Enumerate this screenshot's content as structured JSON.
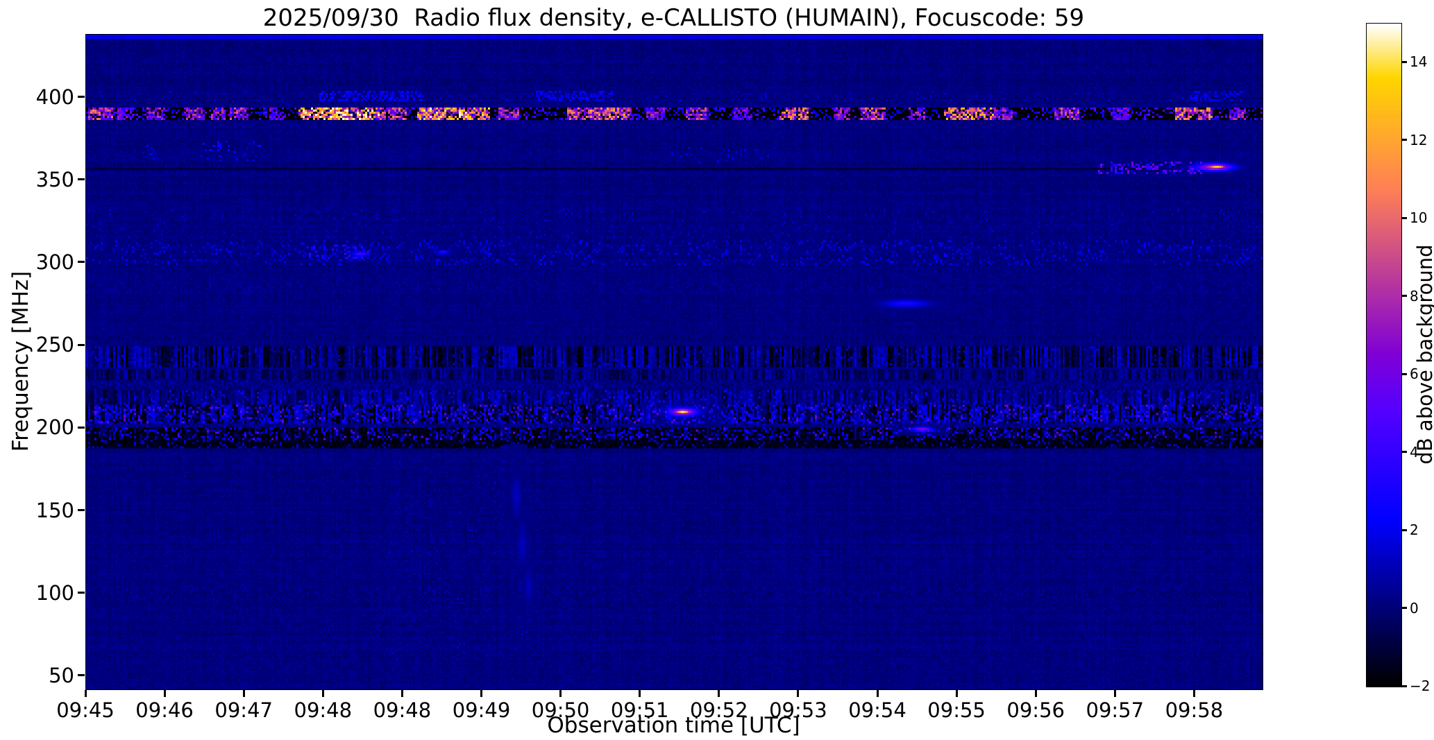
{
  "chart_data": {
    "type": "heatmap",
    "title": "2025/09/30  Radio flux density, e-CALLISTO (HUMAIN), Focuscode: 59",
    "xlabel": "Observation time [UTC]",
    "ylabel": "Frequency [MHz]",
    "x_ticks": [
      "09:45",
      "09:46",
      "09:47",
      "09:48",
      "09:48",
      "09:49",
      "09:50",
      "09:51",
      "09:52",
      "09:53",
      "09:54",
      "09:55",
      "09:56",
      "09:57",
      "09:58"
    ],
    "y_ticks": [
      400,
      350,
      300,
      250,
      200,
      150,
      100,
      50
    ],
    "freq_range": [
      42,
      438
    ],
    "time_span": 14.87,
    "value_range": [
      -2,
      15
    ],
    "background_level_db": 0.15,
    "grid": false,
    "colorbar": {
      "label": "dB above background",
      "ticks": [
        14,
        12,
        10,
        8,
        6,
        4,
        2,
        0,
        -2
      ],
      "tick_labels": [
        "14",
        "12",
        "10",
        "8",
        "6",
        "4",
        "2",
        "0",
        "−2"
      ],
      "colormap": "gnuplot2"
    },
    "features": [
      {
        "kind": "hline",
        "f": 437,
        "h": 2.5,
        "v": 2.0
      },
      {
        "kind": "speckles",
        "f0": 398,
        "f1": 403,
        "t0": 0,
        "t1": 14.87,
        "density": 0.04,
        "v0": 0.7,
        "v1": 1.6
      },
      {
        "kind": "speckles",
        "f0": 398,
        "f1": 404,
        "t0": 2.95,
        "t1": 4.25,
        "density": 0.5,
        "v0": 1.4,
        "v1": 3.0
      },
      {
        "kind": "speckles",
        "f0": 398,
        "f1": 404,
        "t0": 5.7,
        "t1": 6.65,
        "density": 0.45,
        "v0": 1.3,
        "v1": 2.8
      },
      {
        "kind": "speckles",
        "f0": 399,
        "f1": 403,
        "t0": 13.95,
        "t1": 14.6,
        "density": 0.4,
        "v0": 1.4,
        "v1": 2.6
      },
      {
        "kind": "band",
        "f0": 386.5,
        "f1": 393.5,
        "base": -1.85,
        "amp": 0.25
      },
      {
        "kind": "speckles",
        "f0": 387,
        "f1": 393,
        "t0": 0,
        "t1": 14.87,
        "density": 0.28,
        "v0": 0.5,
        "v1": 5.5
      },
      {
        "kind": "clusters",
        "f0": 387.5,
        "f1": 392.8,
        "rate": 0.7,
        "items": [
          {
            "t": 0.18,
            "w": 0.14,
            "v": 9
          },
          {
            "t": 0.5,
            "w": 0.08,
            "v": 6
          },
          {
            "t": 0.88,
            "w": 0.1,
            "v": 7
          },
          {
            "t": 1.38,
            "w": 0.12,
            "v": 8
          },
          {
            "t": 1.68,
            "w": 0.08,
            "v": 7
          },
          {
            "t": 1.93,
            "w": 0.1,
            "v": 8
          },
          {
            "t": 2.4,
            "w": 0.08,
            "v": 6
          },
          {
            "t": 3.2,
            "w": 0.5,
            "v": 13
          },
          {
            "t": 3.85,
            "w": 0.18,
            "v": 9
          },
          {
            "t": 4.35,
            "w": 0.12,
            "v": 8
          },
          {
            "t": 4.65,
            "w": 0.45,
            "v": 12
          },
          {
            "t": 5.35,
            "w": 0.12,
            "v": 8
          },
          {
            "t": 6.3,
            "w": 0.22,
            "v": 9
          },
          {
            "t": 6.62,
            "w": 0.25,
            "v": 10
          },
          {
            "t": 7.2,
            "w": 0.1,
            "v": 7
          },
          {
            "t": 7.72,
            "w": 0.12,
            "v": 8
          },
          {
            "t": 8.3,
            "w": 0.1,
            "v": 6
          },
          {
            "t": 8.95,
            "w": 0.18,
            "v": 10
          },
          {
            "t": 9.55,
            "w": 0.1,
            "v": 7
          },
          {
            "t": 9.95,
            "w": 0.15,
            "v": 9
          },
          {
            "t": 10.5,
            "w": 0.1,
            "v": 7
          },
          {
            "t": 11.15,
            "w": 0.3,
            "v": 11
          },
          {
            "t": 11.6,
            "w": 0.1,
            "v": 7
          },
          {
            "t": 12.4,
            "w": 0.14,
            "v": 8
          },
          {
            "t": 13.1,
            "w": 0.1,
            "v": 6
          },
          {
            "t": 14.0,
            "w": 0.22,
            "v": 10
          },
          {
            "t": 14.55,
            "w": 0.1,
            "v": 7
          }
        ]
      },
      {
        "kind": "speckles",
        "f0": 362,
        "f1": 373,
        "t0": 1.45,
        "t1": 2.2,
        "density": 0.16,
        "v0": 1.2,
        "v1": 3.0
      },
      {
        "kind": "speckles",
        "f0": 363,
        "f1": 371,
        "t0": 0.6,
        "t1": 0.95,
        "density": 0.1,
        "v0": 1.0,
        "v1": 2.2
      },
      {
        "kind": "speckles",
        "f0": 361,
        "f1": 369,
        "t0": 7.4,
        "t1": 8.7,
        "density": 0.05,
        "v0": 0.9,
        "v1": 2.0
      },
      {
        "kind": "hline",
        "f": 357.5,
        "h": 1.3,
        "v": -0.9
      },
      {
        "kind": "speckles",
        "f0": 355,
        "f1": 361,
        "t0": 12.8,
        "t1": 14.1,
        "density": 0.35,
        "v0": 2.0,
        "v1": 6.5
      },
      {
        "kind": "blob",
        "f": 358.5,
        "t": 14.25,
        "df": 2.2,
        "dt": 0.22,
        "v": 9
      },
      {
        "kind": "blob",
        "f": 358.8,
        "t": 14.28,
        "df": 1.3,
        "dt": 0.12,
        "v": 13
      },
      {
        "kind": "speckles",
        "f0": 316,
        "f1": 332,
        "t0": 0,
        "t1": 14.87,
        "density": 0.05,
        "v0": 0.5,
        "v1": 1.5
      },
      {
        "kind": "speckles",
        "f0": 299,
        "f1": 313,
        "t0": 0,
        "t1": 14.87,
        "density": 0.13,
        "v0": 0.8,
        "v1": 2.6
      },
      {
        "kind": "speckles",
        "f0": 303,
        "f1": 310,
        "t0": 2.8,
        "t1": 3.6,
        "density": 0.2,
        "v0": 1.8,
        "v1": 4.2
      },
      {
        "kind": "blob",
        "f": 306,
        "t": 3.45,
        "df": 1.5,
        "dt": 0.1,
        "v": 4.5
      },
      {
        "kind": "blob",
        "f": 307,
        "t": 4.5,
        "df": 1.2,
        "dt": 0.08,
        "v": 3.5
      },
      {
        "kind": "speckles",
        "f0": 283,
        "f1": 288,
        "t0": 0,
        "t1": 14.87,
        "density": 0.25,
        "v0": -0.2,
        "v1": 0.9
      },
      {
        "kind": "blob",
        "f": 276,
        "t": 10.35,
        "df": 2.0,
        "dt": 0.28,
        "v": 3.2
      },
      {
        "kind": "vstripes",
        "f0": 237,
        "f1": 249,
        "base": -0.35,
        "amp": 1.7,
        "jit": 0.7
      },
      {
        "kind": "speckles",
        "f0": 237,
        "f1": 249,
        "t0": 0,
        "t1": 14.87,
        "density": 0.05,
        "v0": 1.2,
        "v1": 2.2
      },
      {
        "kind": "vstripes",
        "f0": 230,
        "f1": 234.5,
        "base": -0.15,
        "amp": 1.0,
        "jit": 0.5
      },
      {
        "kind": "speckles",
        "f0": 224,
        "f1": 229,
        "t0": 0,
        "t1": 14.87,
        "density": 0.4,
        "v0": -0.8,
        "v1": 1.2
      },
      {
        "kind": "vstripes",
        "f0": 215,
        "f1": 222,
        "base": 0.1,
        "amp": 1.2,
        "jit": 0.6
      },
      {
        "kind": "speckles",
        "f0": 215,
        "f1": 222,
        "t0": 0,
        "t1": 14.87,
        "density": 0.08,
        "v0": 1.5,
        "v1": 3.0
      },
      {
        "kind": "vstripes",
        "f0": 204,
        "f1": 214,
        "base": 0.0,
        "amp": 1.9,
        "jit": 0.8
      },
      {
        "kind": "speckles",
        "f0": 204,
        "f1": 214,
        "t0": 0,
        "t1": 14.87,
        "density": 0.2,
        "v0": 1.5,
        "v1": 4.0
      },
      {
        "kind": "speckles",
        "f0": 204,
        "f1": 214,
        "t0": 0,
        "t1": 14.87,
        "density": 0.12,
        "v0": -2,
        "v1": -1.5
      },
      {
        "kind": "speckles",
        "f0": 204,
        "f1": 213,
        "t0": 0,
        "t1": 14.87,
        "density": 0.035,
        "v0": 4.5,
        "v1": 6.5
      },
      {
        "kind": "speckles",
        "f0": 200,
        "f1": 204,
        "t0": 0,
        "t1": 14.87,
        "density": 0.3,
        "v0": -0.8,
        "v1": 1.4
      },
      {
        "kind": "vstripes",
        "f0": 192.5,
        "f1": 200,
        "base": -0.9,
        "amp": 1.3,
        "jit": 0.7
      },
      {
        "kind": "speckles",
        "f0": 192.5,
        "f1": 200,
        "t0": 0,
        "t1": 14.87,
        "density": 0.22,
        "v0": 1.0,
        "v1": 3.5
      },
      {
        "kind": "speckles",
        "f0": 192.5,
        "f1": 200,
        "t0": 0,
        "t1": 14.87,
        "density": 0.25,
        "v0": -2,
        "v1": -1.6
      },
      {
        "kind": "speckles",
        "f0": 193,
        "f1": 200,
        "t0": 0,
        "t1": 14.87,
        "density": 0.02,
        "v0": 4.5,
        "v1": 6.0
      },
      {
        "kind": "band",
        "f0": 188,
        "f1": 192.5,
        "base": -1.6,
        "amp": 0.45
      },
      {
        "kind": "speckles",
        "f0": 188,
        "f1": 192.5,
        "t0": 0,
        "t1": 14.87,
        "density": 0.12,
        "v0": 0.5,
        "v1": 2.0
      },
      {
        "kind": "blob",
        "f": 210.5,
        "t": 7.53,
        "df": 2.2,
        "dt": 0.17,
        "v": 10
      },
      {
        "kind": "blob",
        "f": 210.5,
        "t": 7.53,
        "df": 1.2,
        "dt": 0.1,
        "v": 14.5
      },
      {
        "kind": "blob",
        "f": 200,
        "t": 10.55,
        "df": 1.4,
        "dt": 0.12,
        "v": 6.5
      },
      {
        "kind": "speckles",
        "f0": 98,
        "f1": 103,
        "t0": 0,
        "t1": 14.87,
        "density": 0.3,
        "v0": -0.3,
        "v1": 0.8
      },
      {
        "kind": "blob",
        "f": 160,
        "t": 5.42,
        "df": 10,
        "dt": 0.05,
        "v": 1.3
      },
      {
        "kind": "blob",
        "f": 130,
        "t": 5.5,
        "df": 12,
        "dt": 0.05,
        "v": 1.2
      },
      {
        "kind": "blob",
        "f": 105,
        "t": 5.58,
        "df": 10,
        "dt": 0.05,
        "v": 1.1
      },
      {
        "kind": "speckles",
        "f0": 60,
        "f1": 180,
        "t0": 3.8,
        "t1": 5.7,
        "density": 0.03,
        "v0": 0.5,
        "v1": 1.2
      }
    ]
  }
}
